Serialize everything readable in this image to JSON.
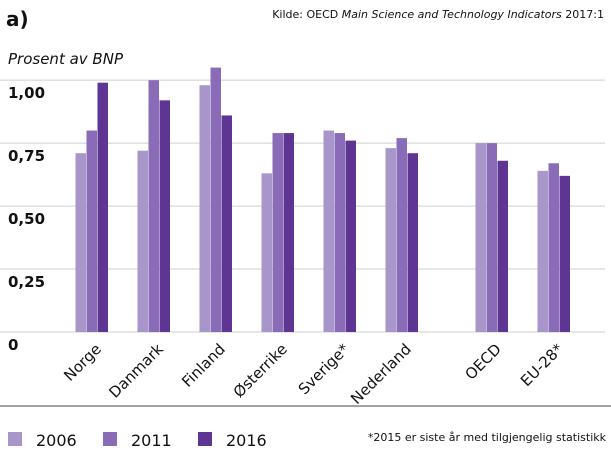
{
  "chart_data": {
    "type": "bar",
    "panel": "a)",
    "source": [
      "Kilde: OECD ",
      "Main Science and Technology Indicators",
      " 2017:1"
    ],
    "ylabel": "Prosent av BNP",
    "note": "*2015 er siste år med tilgjengelig statistikk",
    "categories": [
      "Norge",
      "Danmark",
      "Finland",
      "Østerrike",
      "Sverige*",
      "Nederland",
      "OECD",
      "EU-28*"
    ],
    "series": [
      {
        "name": "2006",
        "color": "#a895c9",
        "values": [
          0.71,
          0.72,
          0.98,
          0.63,
          0.8,
          0.73,
          0.75,
          0.64
        ]
      },
      {
        "name": "2011",
        "color": "#8a6bb8",
        "values": [
          0.8,
          1.0,
          1.05,
          0.79,
          0.79,
          0.77,
          0.75,
          0.67
        ]
      },
      {
        "name": "2016",
        "color": "#5e3592",
        "values": [
          0.99,
          0.92,
          0.86,
          0.79,
          0.76,
          0.71,
          0.68,
          0.62
        ]
      }
    ],
    "ylim": [
      0,
      1.1
    ],
    "yticks": [
      0,
      {
        "value": 0.25,
        "label": "0,25"
      },
      {
        "value": 0.5,
        "label": "0,50"
      },
      {
        "value": 0.75,
        "label": "0,75"
      },
      {
        "value": 1,
        "label": "1,00"
      }
    ],
    "grid": true
  }
}
